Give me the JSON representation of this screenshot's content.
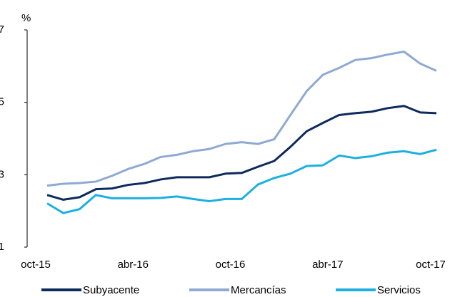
{
  "chart_data": {
    "type": "line",
    "y_label": "%",
    "categories": [
      "oct-15",
      null,
      null,
      null,
      null,
      null,
      "abr-16",
      null,
      null,
      null,
      null,
      null,
      "oct-16",
      null,
      null,
      null,
      null,
      null,
      "abr-17",
      null,
      null,
      null,
      null,
      null,
      "oct-17"
    ],
    "series": [
      {
        "name": "Subyacente",
        "color": "#0d2a5c",
        "values": [
          2.44,
          2.31,
          2.38,
          2.6,
          2.62,
          2.72,
          2.77,
          2.87,
          2.93,
          2.93,
          2.93,
          3.03,
          3.05,
          3.22,
          3.38,
          3.77,
          4.2,
          4.43,
          4.65,
          4.7,
          4.74,
          4.84,
          4.9,
          4.72,
          4.7
        ]
      },
      {
        "name": "Mercancías",
        "color": "#8eaad2",
        "values": [
          2.7,
          2.75,
          2.77,
          2.81,
          2.97,
          3.16,
          3.3,
          3.49,
          3.55,
          3.65,
          3.71,
          3.85,
          3.9,
          3.85,
          3.98,
          4.65,
          5.31,
          5.76,
          5.95,
          6.17,
          6.22,
          6.32,
          6.4,
          6.07,
          5.87
        ]
      },
      {
        "name": "Servicios",
        "color": "#1bb0e0",
        "values": [
          2.21,
          1.94,
          2.05,
          2.44,
          2.35,
          2.35,
          2.35,
          2.36,
          2.4,
          2.33,
          2.27,
          2.33,
          2.33,
          2.73,
          2.91,
          3.03,
          3.24,
          3.26,
          3.53,
          3.46,
          3.51,
          3.61,
          3.65,
          3.57,
          3.69
        ]
      }
    ],
    "ylim": [
      1,
      7
    ],
    "yticks": [
      1,
      3,
      5,
      7
    ],
    "grid": false,
    "legend": "bottom"
  }
}
